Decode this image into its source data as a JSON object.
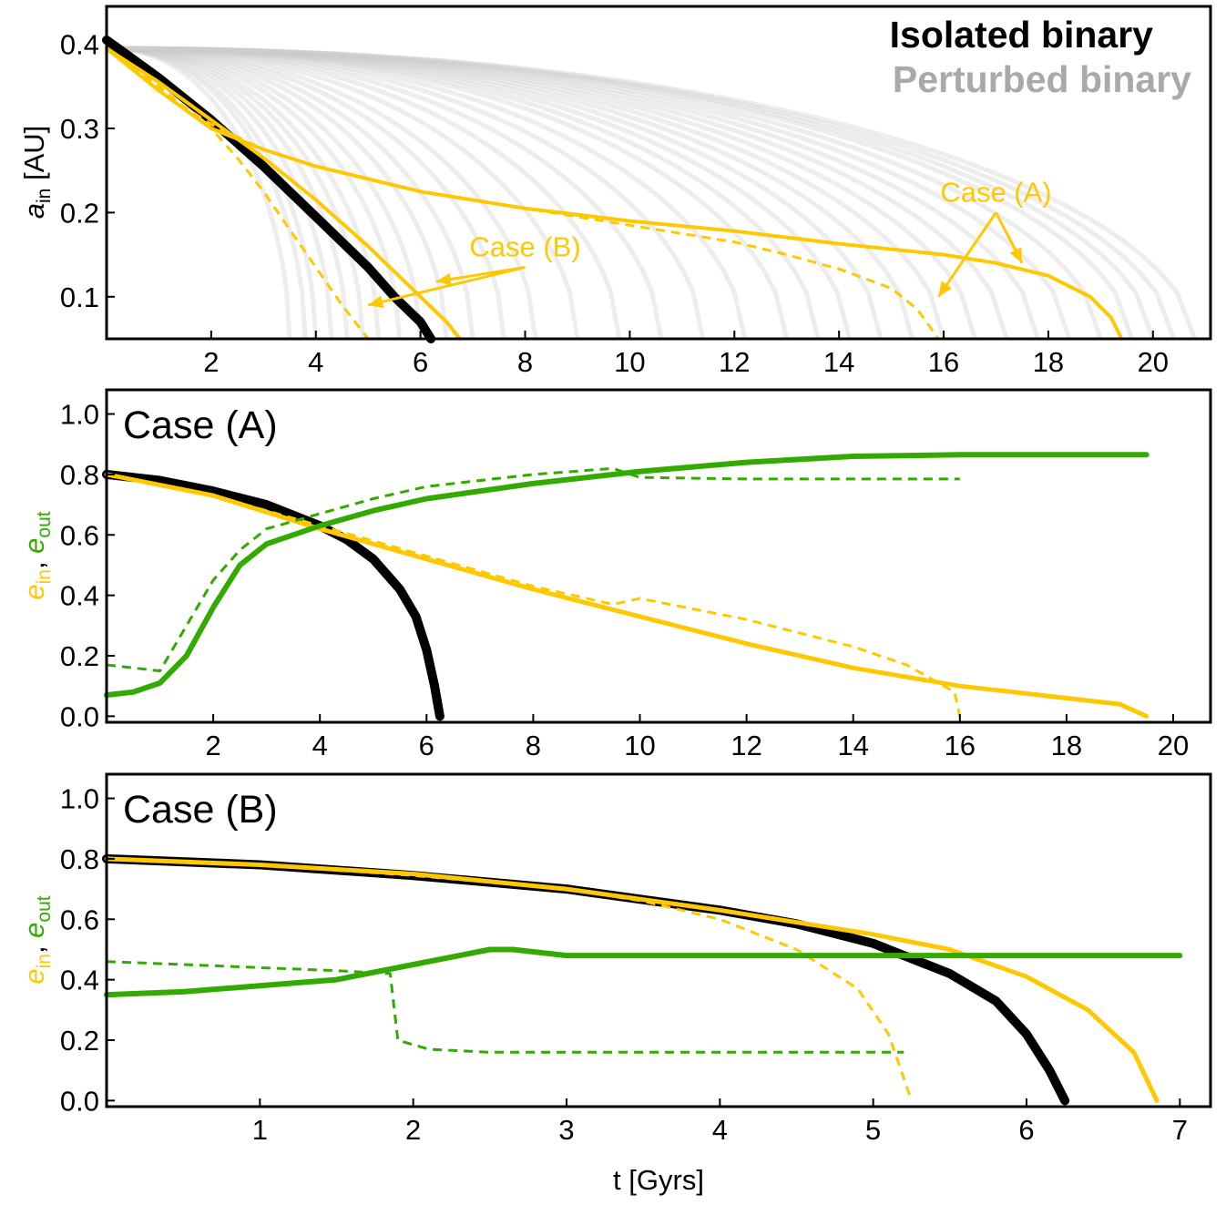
{
  "legend": {
    "isolated": "Isolated binary",
    "perturbed": "Perturbed binary",
    "isolated_color": "#000000",
    "perturbed_color": "#a9a9a9"
  },
  "colors": {
    "yellow": "#ffc800",
    "green": "#33aa00",
    "grey": "#cccccc",
    "black": "#000000"
  },
  "chart_data": [
    {
      "type": "line",
      "title": "",
      "xlabel": "",
      "ylabel": "a_in [AU]",
      "ylabel_main": "a",
      "ylabel_sub": "in",
      "ylabel_unit": " [AU]",
      "xlim": [
        0,
        21.1
      ],
      "ylim": [
        0.05,
        0.445
      ],
      "xticks": [
        2,
        4,
        6,
        8,
        10,
        12,
        14,
        16,
        18,
        20
      ],
      "yticks": [
        0.1,
        0.2,
        0.3,
        0.4
      ],
      "ytick_labels": [
        "0.1",
        "0.2",
        "0.3",
        "0.4"
      ],
      "series": [
        {
          "name": "Isolated binary",
          "color": "#000000",
          "style": "solid",
          "x": [
            0,
            1,
            2,
            3,
            4,
            5,
            5.5,
            6,
            6.2
          ],
          "y": [
            0.405,
            0.36,
            0.31,
            0.255,
            0.195,
            0.135,
            0.1,
            0.07,
            0.05
          ]
        },
        {
          "name": "Case (A) solid",
          "color": "#ffc800",
          "style": "solid",
          "x": [
            0,
            1,
            2,
            3,
            4,
            6,
            8,
            10,
            12,
            14,
            16,
            17,
            18,
            18.8,
            19.2,
            19.4
          ],
          "y": [
            0.395,
            0.345,
            0.3,
            0.275,
            0.255,
            0.225,
            0.205,
            0.19,
            0.178,
            0.163,
            0.15,
            0.14,
            0.125,
            0.1,
            0.075,
            0.05
          ]
        },
        {
          "name": "Case (A) dashed",
          "color": "#ffc800",
          "style": "dashed",
          "x": [
            0,
            1,
            2,
            3,
            4,
            6,
            8,
            10,
            12,
            13,
            14,
            15,
            15.5,
            15.9
          ],
          "y": [
            0.395,
            0.345,
            0.305,
            0.275,
            0.255,
            0.225,
            0.205,
            0.185,
            0.165,
            0.15,
            0.133,
            0.11,
            0.085,
            0.05
          ]
        },
        {
          "name": "Case (B) solid",
          "color": "#ffc800",
          "style": "solid",
          "x": [
            0,
            1,
            2,
            3,
            4,
            5,
            6,
            6.5,
            6.75
          ],
          "y": [
            0.395,
            0.355,
            0.31,
            0.265,
            0.215,
            0.16,
            0.1,
            0.07,
            0.05
          ]
        },
        {
          "name": "Case (B) dashed",
          "color": "#ffc800",
          "style": "dashed",
          "x": [
            0,
            1,
            2,
            2.5,
            3,
            3.5,
            4,
            4.5,
            5
          ],
          "y": [
            0.395,
            0.35,
            0.3,
            0.265,
            0.225,
            0.18,
            0.135,
            0.09,
            0.05
          ]
        }
      ],
      "perturbed_end_times": [
        3.5,
        3.8,
        4.0,
        4.3,
        4.6,
        4.9,
        5.2,
        5.6,
        6.0,
        6.5,
        7.0,
        7.6,
        8.2,
        9.0,
        9.8,
        10.6,
        11.4,
        12.2,
        13.0,
        13.6,
        14.2,
        14.8,
        15.4,
        16.0,
        16.6,
        17.2,
        17.8,
        18.4,
        19.0,
        19.6,
        20.0,
        20.4,
        20.8
      ],
      "annotations": [
        {
          "text": "Case (A)",
          "x": 17.0,
          "y": 0.213,
          "arrows_to": [
            [
              15.9,
              0.1
            ],
            [
              17.5,
              0.14
            ]
          ]
        },
        {
          "text": "Case (B)",
          "x": 8.0,
          "y": 0.148,
          "arrows_to": [
            [
              5.0,
              0.09
            ],
            [
              6.3,
              0.118
            ]
          ]
        }
      ]
    },
    {
      "type": "line",
      "title": "Case (A)",
      "xlabel": "",
      "ylabel": "e_in, e_out",
      "ylabel_in": "e",
      "ylabel_in_sub": "in",
      "ylabel_sep": ", ",
      "ylabel_out": "e",
      "ylabel_out_sub": "out",
      "xlim": [
        0,
        20.7
      ],
      "ylim": [
        -0.02,
        1.08
      ],
      "xticks": [
        2,
        4,
        6,
        8,
        10,
        12,
        14,
        16,
        18,
        20
      ],
      "yticks": [
        0.0,
        0.2,
        0.4,
        0.6,
        0.8,
        1.0
      ],
      "ytick_labels": [
        "0.0",
        "0.2",
        "0.4",
        "0.6",
        "0.8",
        "1.0"
      ],
      "series": [
        {
          "name": "isolated e_in",
          "color": "#000000",
          "style": "solid",
          "x": [
            0,
            1,
            2,
            3,
            4,
            4.5,
            5,
            5.5,
            5.8,
            6.0,
            6.15,
            6.25
          ],
          "y": [
            0.8,
            0.78,
            0.745,
            0.7,
            0.63,
            0.585,
            0.52,
            0.42,
            0.33,
            0.22,
            0.1,
            0.0
          ]
        },
        {
          "name": "e_in solid",
          "color": "#ffc800",
          "style": "solid",
          "x": [
            0,
            2,
            4,
            6,
            8,
            10,
            12,
            14,
            16,
            17,
            18,
            19,
            19.5
          ],
          "y": [
            0.8,
            0.73,
            0.62,
            0.52,
            0.42,
            0.33,
            0.24,
            0.16,
            0.1,
            0.08,
            0.06,
            0.04,
            0.0
          ]
        },
        {
          "name": "e_in dashed",
          "color": "#ffc800",
          "style": "dashed",
          "x": [
            0,
            2,
            4,
            6,
            8,
            9.5,
            10,
            12,
            14,
            15,
            15.9,
            16.0
          ],
          "y": [
            0.8,
            0.73,
            0.63,
            0.53,
            0.43,
            0.37,
            0.39,
            0.32,
            0.23,
            0.17,
            0.08,
            0.0
          ]
        },
        {
          "name": "e_out solid",
          "color": "#33aa00",
          "style": "solid",
          "x": [
            0,
            0.5,
            1,
            1.5,
            2,
            2.5,
            3,
            4,
            5,
            6,
            8,
            10,
            12,
            14,
            16,
            19.5
          ],
          "y": [
            0.07,
            0.08,
            0.11,
            0.2,
            0.36,
            0.5,
            0.57,
            0.63,
            0.68,
            0.72,
            0.77,
            0.81,
            0.84,
            0.86,
            0.865,
            0.865
          ]
        },
        {
          "name": "e_out dashed",
          "color": "#33aa00",
          "style": "dashed",
          "x": [
            0,
            0.5,
            1,
            1.5,
            2,
            2.5,
            3,
            4,
            5,
            6,
            8,
            9.5,
            10,
            12,
            16
          ],
          "y": [
            0.17,
            0.16,
            0.15,
            0.3,
            0.45,
            0.55,
            0.62,
            0.67,
            0.72,
            0.76,
            0.8,
            0.82,
            0.79,
            0.785,
            0.785
          ]
        }
      ]
    },
    {
      "type": "line",
      "title": "Case (B)",
      "xlabel": "t [Gyrs]",
      "ylabel": "e_in, e_out",
      "ylabel_in": "e",
      "ylabel_in_sub": "in",
      "ylabel_sep": ", ",
      "ylabel_out": "e",
      "ylabel_out_sub": "out",
      "xlim": [
        0,
        7.2
      ],
      "ylim": [
        -0.02,
        1.08
      ],
      "xticks": [
        1,
        2,
        3,
        4,
        5,
        6,
        7
      ],
      "yticks": [
        0.0,
        0.2,
        0.4,
        0.6,
        0.8,
        1.0
      ],
      "ytick_labels": [
        "0.0",
        "0.2",
        "0.4",
        "0.6",
        "0.8",
        "1.0"
      ],
      "series": [
        {
          "name": "isolated e_in",
          "color": "#000000",
          "style": "solid",
          "x": [
            0,
            1,
            2,
            3,
            4,
            4.5,
            5,
            5.5,
            5.8,
            6.0,
            6.15,
            6.25
          ],
          "y": [
            0.8,
            0.78,
            0.745,
            0.7,
            0.63,
            0.585,
            0.52,
            0.42,
            0.33,
            0.22,
            0.1,
            0.0
          ]
        },
        {
          "name": "e_in solid",
          "color": "#ffc800",
          "style": "solid",
          "x": [
            0,
            1,
            2,
            3,
            4,
            5,
            5.5,
            6,
            6.4,
            6.7,
            6.85
          ],
          "y": [
            0.8,
            0.78,
            0.75,
            0.7,
            0.63,
            0.55,
            0.5,
            0.41,
            0.3,
            0.16,
            0.0
          ]
        },
        {
          "name": "e_in dashed",
          "color": "#ffc800",
          "style": "dashed",
          "x": [
            0,
            1,
            2,
            3,
            3.5,
            4,
            4.5,
            4.9,
            5.1,
            5.25
          ],
          "y": [
            0.8,
            0.78,
            0.745,
            0.7,
            0.66,
            0.6,
            0.5,
            0.37,
            0.22,
            0.0
          ]
        },
        {
          "name": "e_out solid",
          "color": "#33aa00",
          "style": "solid",
          "x": [
            0,
            0.5,
            1,
            1.5,
            2,
            2.5,
            2.65,
            3,
            4,
            7.0
          ],
          "y": [
            0.35,
            0.36,
            0.38,
            0.4,
            0.45,
            0.5,
            0.5,
            0.48,
            0.48,
            0.48
          ]
        },
        {
          "name": "e_out dashed",
          "color": "#33aa00",
          "style": "dashed",
          "x": [
            0,
            0.5,
            1,
            1.5,
            1.85,
            1.9,
            2.1,
            2.5,
            3,
            5.2
          ],
          "y": [
            0.46,
            0.45,
            0.44,
            0.43,
            0.42,
            0.2,
            0.17,
            0.16,
            0.16,
            0.16
          ]
        }
      ]
    }
  ]
}
